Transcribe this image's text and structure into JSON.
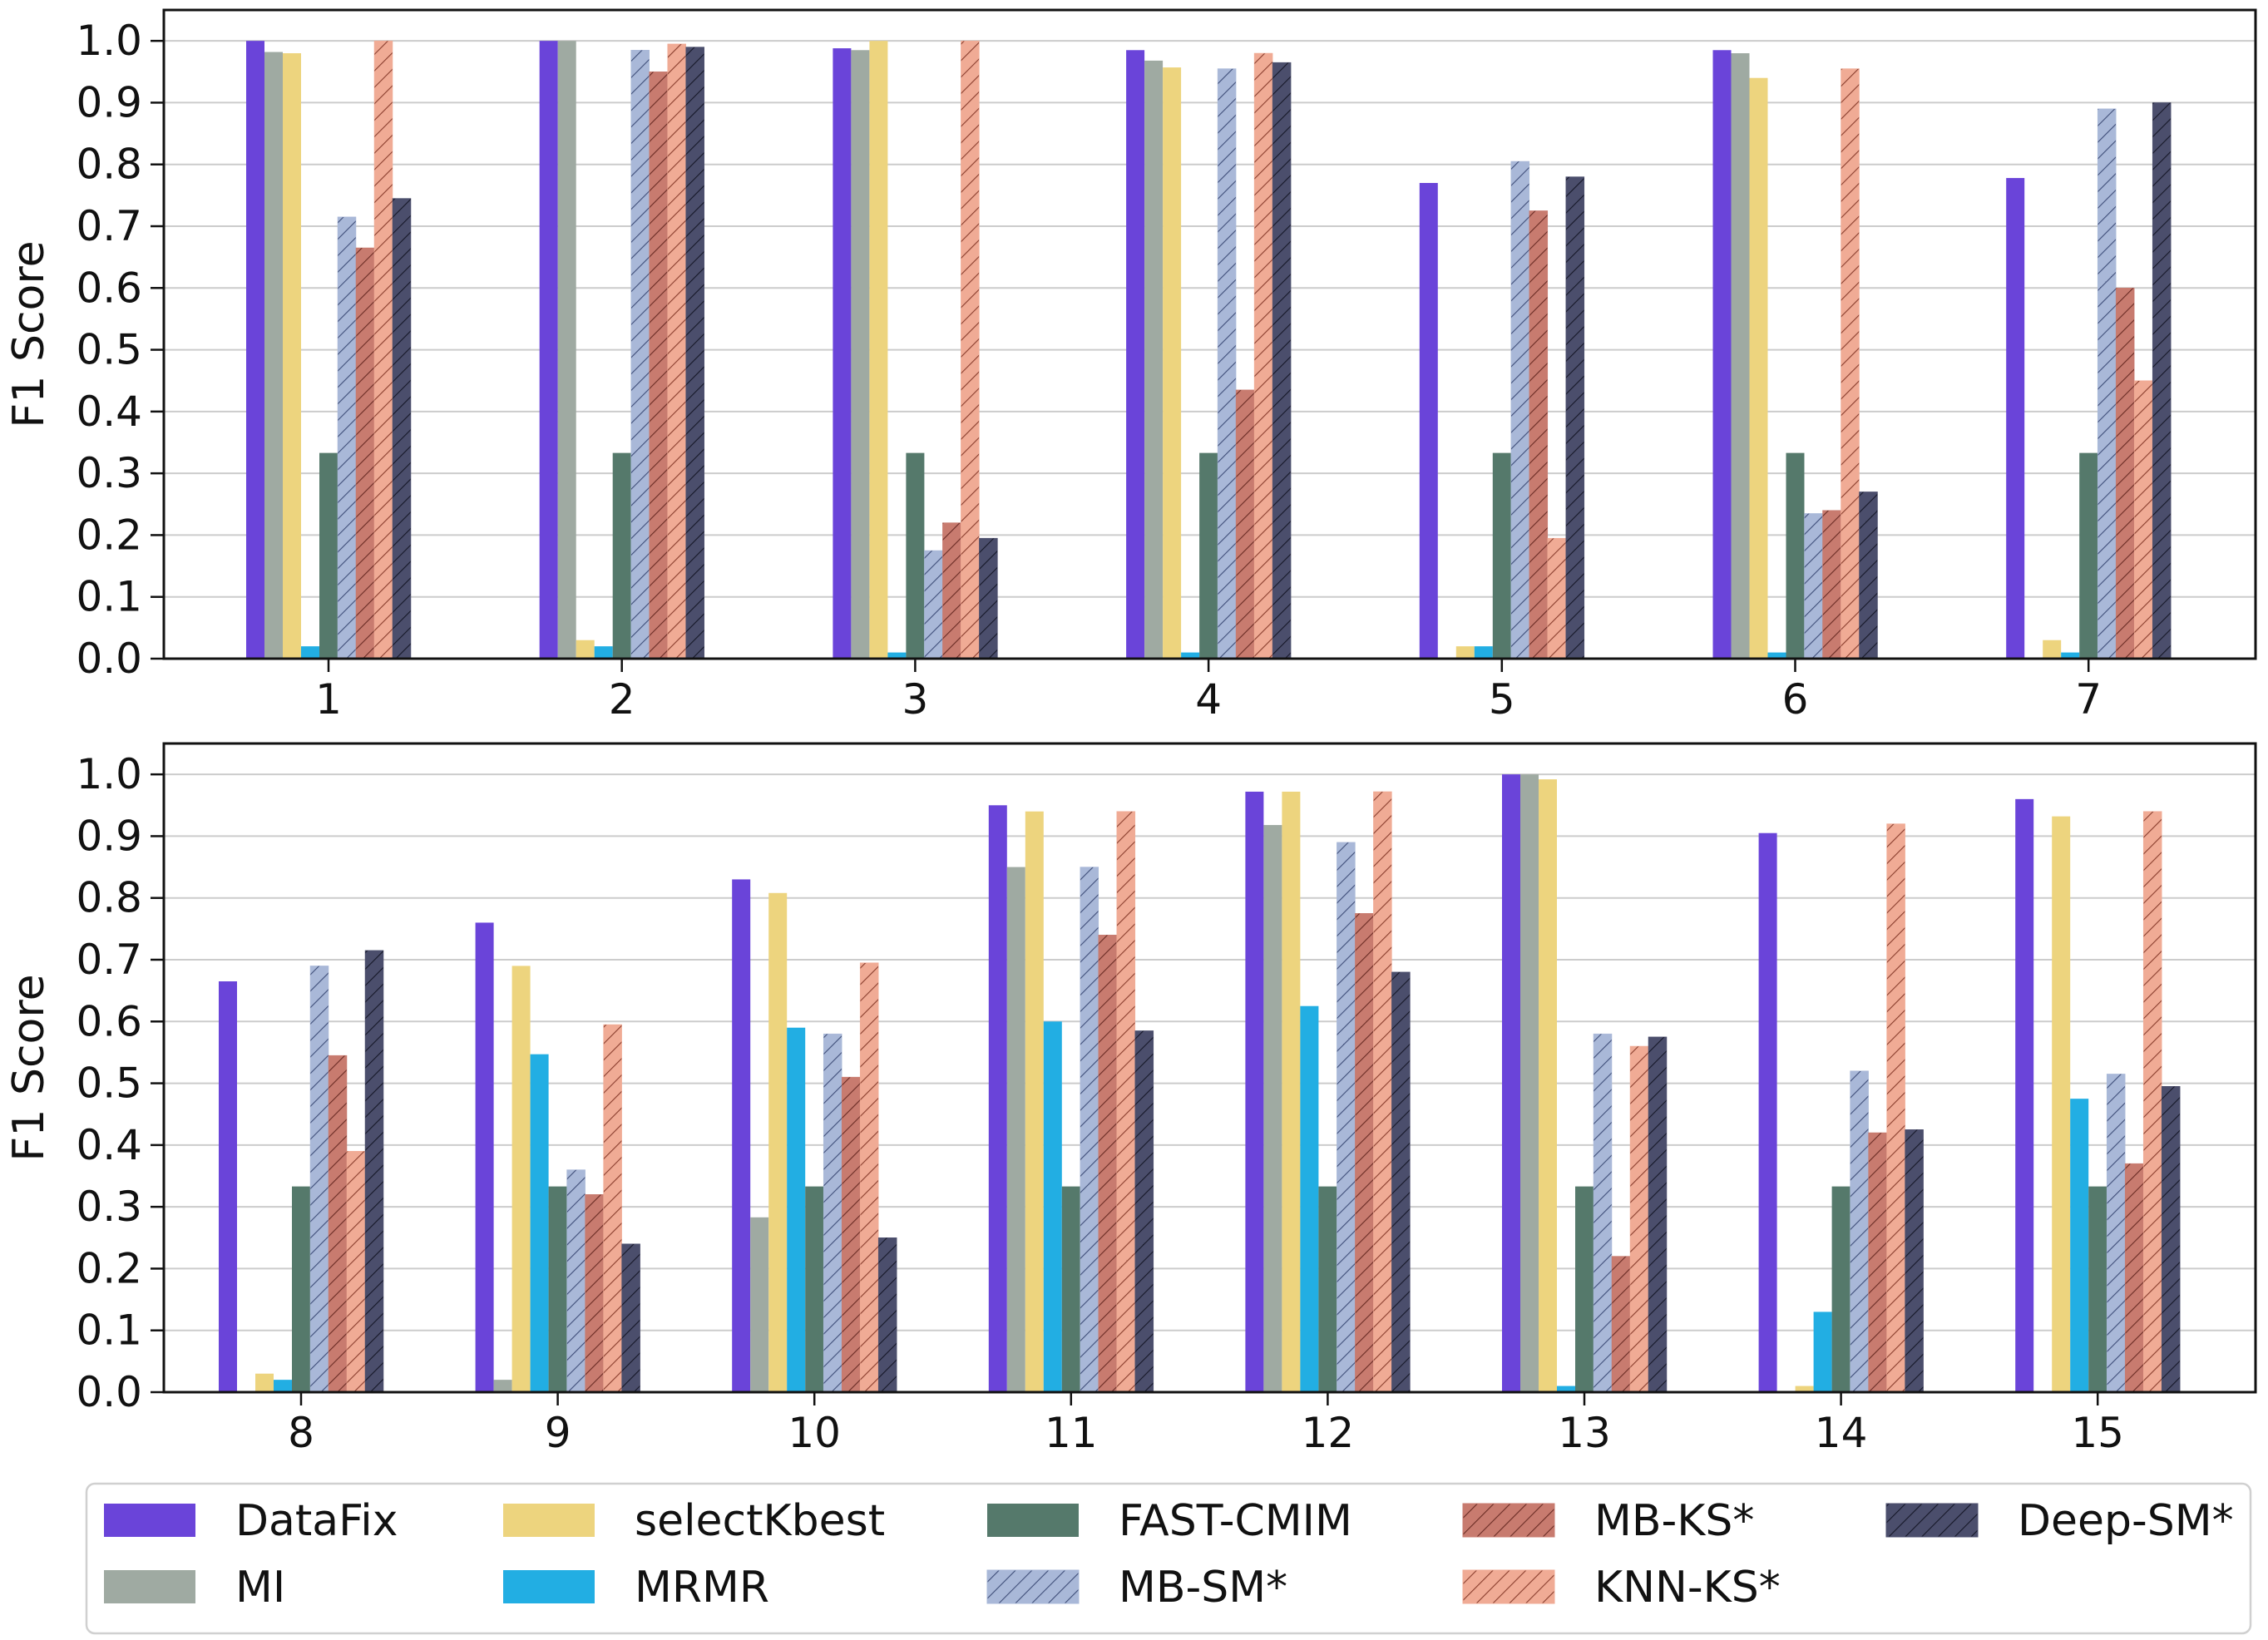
{
  "colors": {
    "DataFix": "#6a44d9",
    "MI": "#9faaa2",
    "selectKbest": "#edd47e",
    "MRMR": "#22aee3",
    "FAST-CMIM": "#55796b",
    "MB-SM*": "#a9b8d8",
    "MB-KS*": "#c87b6f",
    "KNN-KS*": "#f0ab95",
    "Deep-SM*": "#4b4e6c",
    "hatch_MB-SM*": "#3f4e79",
    "hatch_MB-KS*": "#6a2c25",
    "hatch_KNN-KS*": "#8a3e2e",
    "hatch_Deep-SM*": "#161828"
  },
  "legend": {
    "items": [
      "DataFix",
      "MI",
      "selectKbest",
      "MRMR",
      "FAST-CMIM",
      "MB-SM*",
      "MB-KS*",
      "KNN-KS*",
      "Deep-SM*"
    ],
    "hatched": [
      "MB-SM*",
      "MB-KS*",
      "KNN-KS*",
      "Deep-SM*"
    ]
  },
  "chart_data": [
    {
      "type": "bar",
      "ylabel": "F1 Score",
      "xlabel": "",
      "ylim": [
        0.0,
        1.05
      ],
      "yticks": [
        "0.0",
        "0.1",
        "0.2",
        "0.3",
        "0.4",
        "0.5",
        "0.6",
        "0.7",
        "0.8",
        "0.9",
        "1.0"
      ],
      "grid": "horizontal",
      "categories": [
        "1",
        "2",
        "3",
        "4",
        "5",
        "6",
        "7"
      ],
      "series": [
        {
          "name": "DataFix",
          "values": [
            1.0,
            1.0,
            0.988,
            0.985,
            0.77,
            0.985,
            0.778
          ]
        },
        {
          "name": "MI",
          "values": [
            0.982,
            1.0,
            0.985,
            0.968,
            0.0,
            0.98,
            0.0
          ]
        },
        {
          "name": "selectKbest",
          "values": [
            0.98,
            0.03,
            1.0,
            0.957,
            0.02,
            0.94,
            0.03
          ]
        },
        {
          "name": "MRMR",
          "values": [
            0.02,
            0.02,
            0.01,
            0.01,
            0.02,
            0.01,
            0.01
          ]
        },
        {
          "name": "FAST-CMIM",
          "values": [
            0.333,
            0.333,
            0.333,
            0.333,
            0.333,
            0.333,
            0.333
          ]
        },
        {
          "name": "MB-SM*",
          "values": [
            0.715,
            0.985,
            0.175,
            0.955,
            0.805,
            0.235,
            0.89
          ]
        },
        {
          "name": "MB-KS*",
          "values": [
            0.665,
            0.95,
            0.22,
            0.435,
            0.725,
            0.24,
            0.6
          ]
        },
        {
          "name": "KNN-KS*",
          "values": [
            1.0,
            0.995,
            1.0,
            0.98,
            0.195,
            0.955,
            0.45
          ]
        },
        {
          "name": "Deep-SM*",
          "values": [
            0.745,
            0.99,
            0.195,
            0.965,
            0.78,
            0.27,
            0.9
          ]
        }
      ]
    },
    {
      "type": "bar",
      "ylabel": "F1 Score",
      "xlabel": "",
      "ylim": [
        0.0,
        1.05
      ],
      "yticks": [
        "0.0",
        "0.1",
        "0.2",
        "0.3",
        "0.4",
        "0.5",
        "0.6",
        "0.7",
        "0.8",
        "0.9",
        "1.0"
      ],
      "grid": "horizontal",
      "categories": [
        "8",
        "9",
        "10",
        "11",
        "12",
        "13",
        "14",
        "15"
      ],
      "series": [
        {
          "name": "DataFix",
          "values": [
            0.665,
            0.76,
            0.83,
            0.95,
            0.972,
            1.0,
            0.905,
            0.96
          ]
        },
        {
          "name": "MI",
          "values": [
            0.0,
            0.02,
            0.283,
            0.85,
            0.918,
            1.0,
            0.0,
            0.0
          ]
        },
        {
          "name": "selectKbest",
          "values": [
            0.03,
            0.69,
            0.808,
            0.94,
            0.972,
            0.992,
            0.01,
            0.932
          ]
        },
        {
          "name": "MRMR",
          "values": [
            0.02,
            0.547,
            0.59,
            0.6,
            0.625,
            0.01,
            0.13,
            0.475
          ]
        },
        {
          "name": "FAST-CMIM",
          "values": [
            0.333,
            0.333,
            0.333,
            0.333,
            0.333,
            0.333,
            0.333,
            0.333
          ]
        },
        {
          "name": "MB-SM*",
          "values": [
            0.69,
            0.36,
            0.58,
            0.85,
            0.89,
            0.58,
            0.52,
            0.515
          ]
        },
        {
          "name": "MB-KS*",
          "values": [
            0.545,
            0.32,
            0.51,
            0.74,
            0.775,
            0.22,
            0.42,
            0.37
          ]
        },
        {
          "name": "KNN-KS*",
          "values": [
            0.39,
            0.595,
            0.695,
            0.94,
            0.972,
            0.56,
            0.92,
            0.94
          ]
        },
        {
          "name": "Deep-SM*",
          "values": [
            0.715,
            0.24,
            0.25,
            0.585,
            0.68,
            0.575,
            0.425,
            0.495
          ]
        }
      ]
    }
  ]
}
